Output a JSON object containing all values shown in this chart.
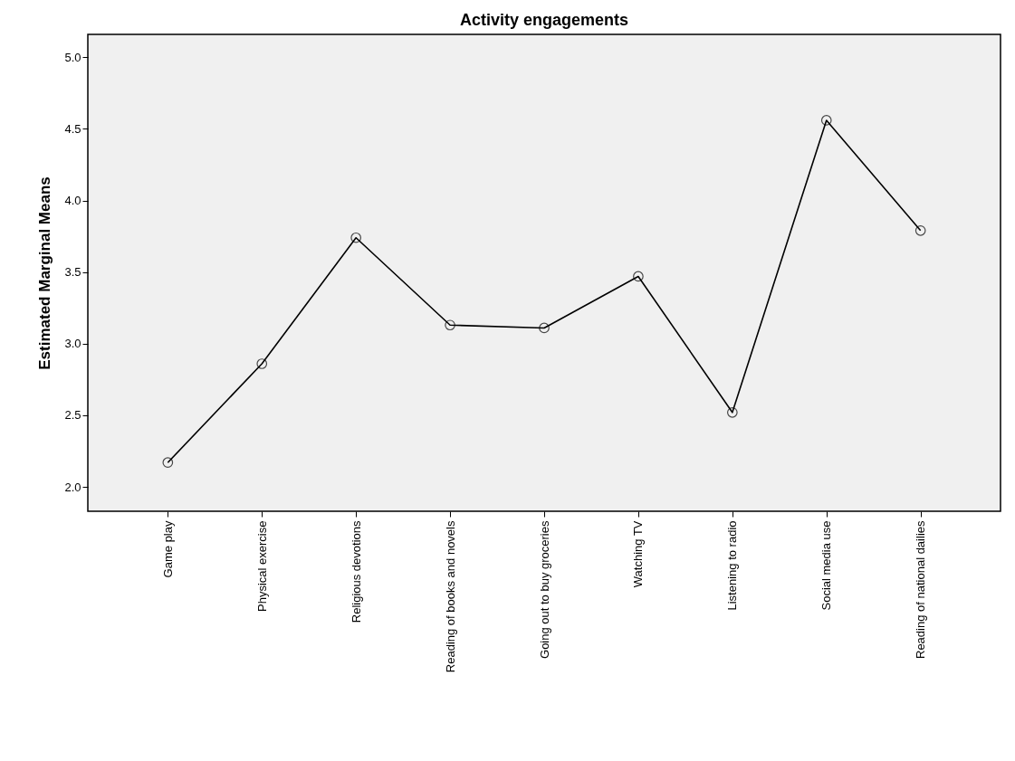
{
  "chart_data": {
    "type": "line",
    "title": "Activity engagements",
    "ylabel": "Estimated Marginal Means",
    "categories": [
      "Game play",
      "Physical exercise",
      "Religious devotions",
      "Reading of books and novels",
      "Going out to buy groceries",
      "Watching TV",
      "Listening to radio",
      "Social media use",
      "Reading of national dailies"
    ],
    "series": [
      {
        "color": "#000000",
        "values": [
          2.17,
          2.86,
          3.74,
          3.13,
          3.11,
          3.47,
          2.52,
          4.56,
          3.79
        ]
      }
    ],
    "ylim": [
      1.83,
      5.16
    ],
    "yticks": [
      {
        "value": 2,
        "label": "2.0"
      },
      2.5,
      {
        "value": 3,
        "label": "3.0"
      },
      3.5,
      {
        "value": 4,
        "label": "4.0"
      },
      4.5,
      {
        "value": 5,
        "label": "5.0"
      }
    ],
    "marker": "circle",
    "grid": false,
    "legend": false
  }
}
